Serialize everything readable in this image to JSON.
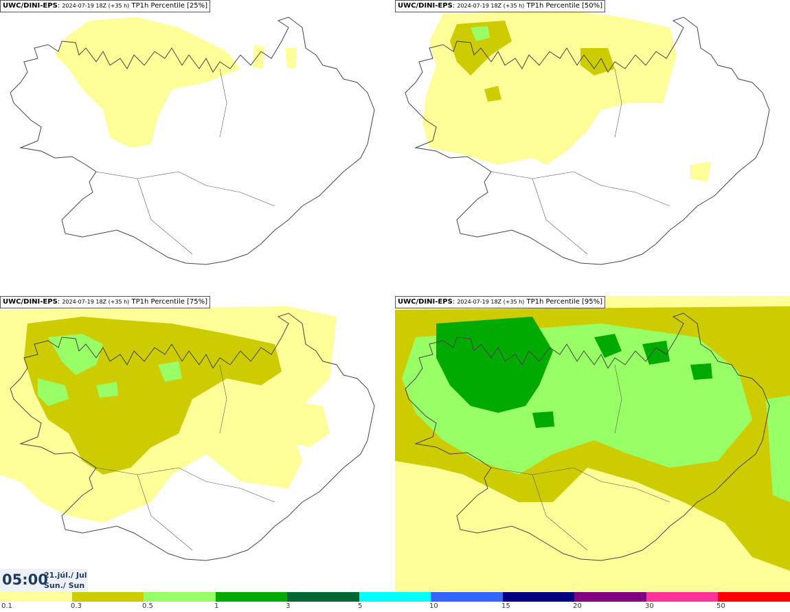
{
  "panels": [
    {
      "model": "UWC/DINI-EPS",
      "run": "2024-07-19 18Z (+35 h)",
      "label": "TP1h Percentile [25%]"
    },
    {
      "model": "UWC/DINI-EPS",
      "run": "2024-07-19 18Z (+35 h)",
      "label": "TP1h Percentile [50%]"
    },
    {
      "model": "UWC/DINI-EPS",
      "run": "2024-07-19 18Z (+35 h)",
      "label": "TP1h Percentile [75%]"
    },
    {
      "model": "UWC/DINI-EPS",
      "run": "2024-07-19 18Z (+35 h)",
      "label": "TP1h Percentile [95%]"
    }
  ],
  "valid_time": {
    "time": "05:00",
    "date_line": "21.júl./ Jul",
    "day_line": "Sun./ Sun"
  },
  "legend": {
    "colors": [
      "#ffff99",
      "#cccc00",
      "#99ff66",
      "#00aa00",
      "#006633",
      "#00ffff",
      "#3366ff",
      "#000080",
      "#800080",
      "#ff3399",
      "#ff0000"
    ],
    "ticks": [
      "0.1",
      "0.3",
      "0.5",
      "1",
      "3",
      "5",
      "10",
      "15",
      "20",
      "30",
      "50"
    ]
  }
}
